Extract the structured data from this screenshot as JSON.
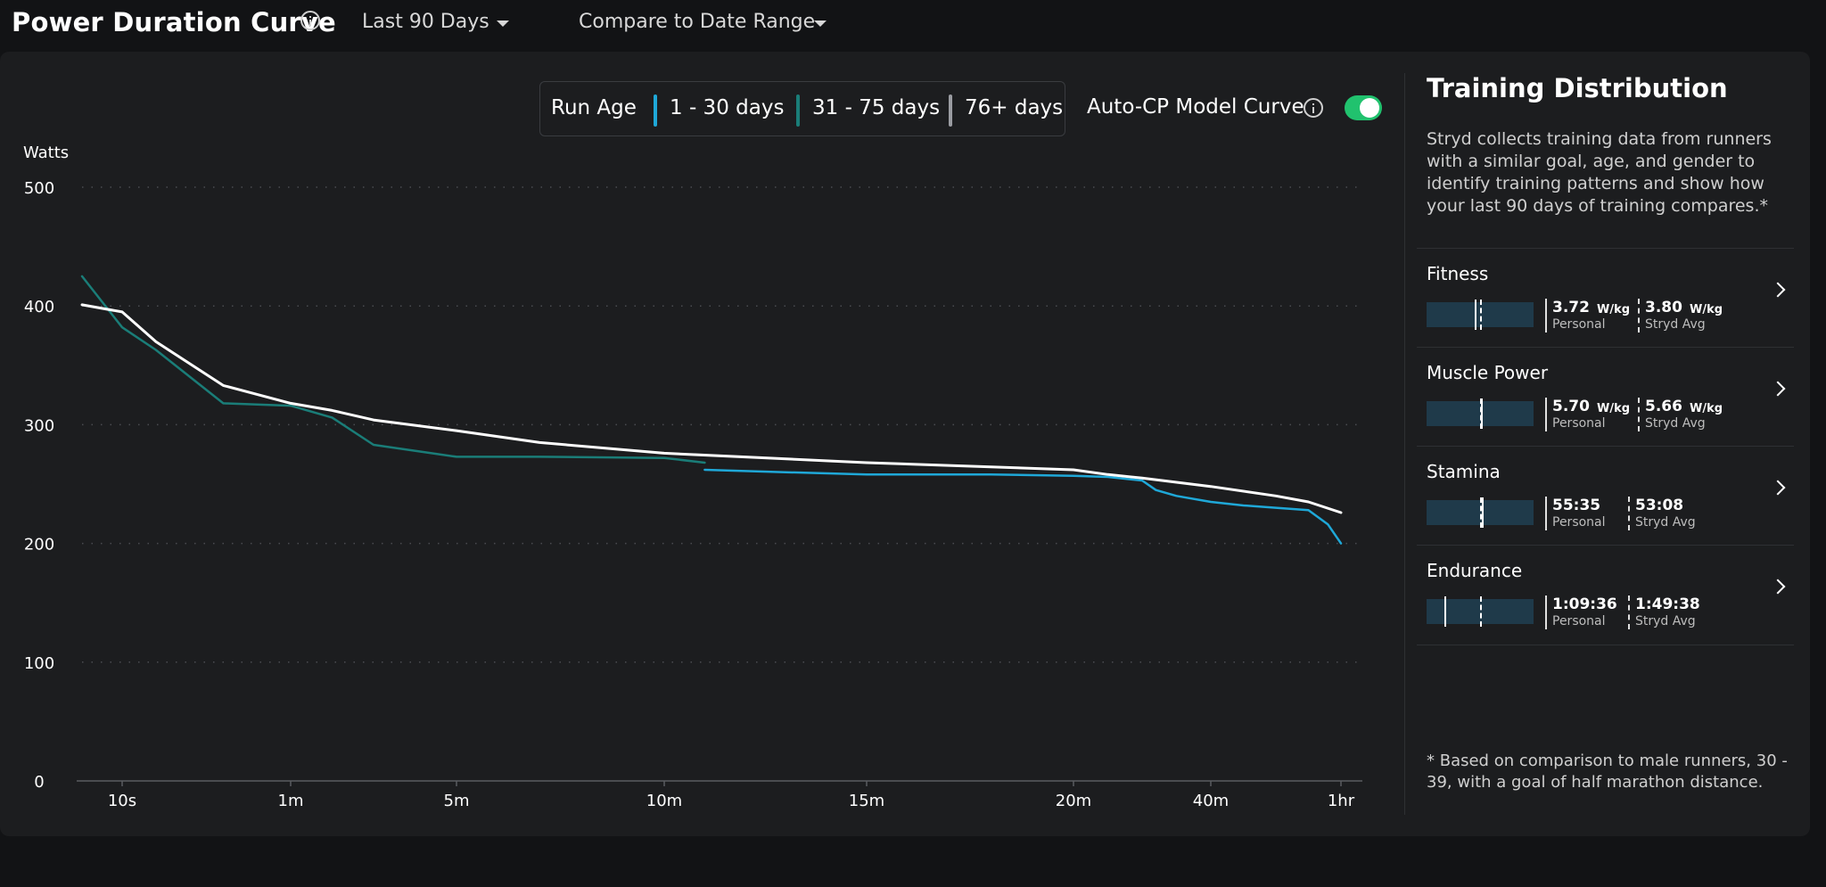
{
  "header": {
    "title": "Power Duration Curve",
    "range_label": "Last 90 Days",
    "compare_label": "Compare to Date Range"
  },
  "legend": {
    "title": "Run Age",
    "items": [
      {
        "label": "1 - 30 days",
        "color": "#1fa8d8"
      },
      {
        "label": "31 - 75 days",
        "color": "#1a7d78"
      },
      {
        "label": "76+ days",
        "color": "#9a9ca2"
      }
    ]
  },
  "model_toggle": {
    "label": "Auto-CP Model Curve",
    "on": true,
    "color": "#21c26e"
  },
  "chart_data": {
    "type": "line",
    "ylabel": "Watts",
    "ylim": [
      0,
      500
    ],
    "yticks": [
      "500",
      "400",
      "300",
      "200",
      "100",
      "0"
    ],
    "xticks": [
      "10s",
      "1m",
      "5m",
      "10m",
      "15m",
      "20m",
      "40m",
      "1hr"
    ],
    "grid": true,
    "series": [
      {
        "color": "#1a7d78",
        "points": [
          [
            "0s",
            425
          ],
          [
            "10s",
            382
          ],
          [
            "20s",
            363
          ],
          [
            "40s",
            318
          ],
          [
            "1m",
            316
          ],
          [
            "2m",
            306
          ],
          [
            "3m",
            283
          ],
          [
            "5m",
            273
          ],
          [
            "7m",
            273
          ],
          [
            "10m",
            272
          ],
          [
            "11m",
            268
          ]
        ]
      },
      {
        "color": "#1fa8d8",
        "points": [
          [
            "11m",
            262
          ],
          [
            "13m",
            260
          ],
          [
            "15m",
            258
          ],
          [
            "18m",
            258
          ],
          [
            "20m",
            257
          ],
          [
            "25m",
            256
          ],
          [
            "30m",
            253
          ],
          [
            "32m",
            245
          ],
          [
            "35m",
            240
          ],
          [
            "40m",
            235
          ],
          [
            "45m",
            232
          ],
          [
            "50m",
            230
          ],
          [
            "55m",
            228
          ],
          [
            "58m",
            216
          ],
          [
            "1hr",
            200
          ]
        ]
      },
      {
        "color": "#ffffff",
        "points": [
          [
            "0s",
            401
          ],
          [
            "10s",
            395
          ],
          [
            "20s",
            370
          ],
          [
            "40s",
            333
          ],
          [
            "1m",
            318
          ],
          [
            "2m",
            312
          ],
          [
            "3m",
            304
          ],
          [
            "5m",
            295
          ],
          [
            "7m",
            285
          ],
          [
            "10m",
            276
          ],
          [
            "15m",
            268
          ],
          [
            "20m",
            262
          ],
          [
            "25m",
            258
          ],
          [
            "30m",
            255
          ],
          [
            "40m",
            248
          ],
          [
            "50m",
            240
          ],
          [
            "55m",
            235
          ],
          [
            "1hr",
            226
          ]
        ]
      }
    ]
  },
  "training": {
    "title": "Training Distribution",
    "description": "Stryd collects training data from runners with a similar goal, age, and gender to identify training patterns and show how your last 90 days of training compares.*",
    "metrics": [
      {
        "name": "Fitness",
        "personal": "3.72",
        "personal_unit": "W/kg",
        "personal_label": "Personal",
        "avg": "3.80",
        "avg_unit": "W/kg",
        "avg_label": "Stryd Avg",
        "personal_frac": 0.45,
        "avg_frac": 0.5
      },
      {
        "name": "Muscle Power",
        "personal": "5.70",
        "personal_unit": "W/kg",
        "personal_label": "Personal",
        "avg": "5.66",
        "avg_unit": "W/kg",
        "avg_label": "Stryd Avg",
        "personal_frac": 0.51,
        "avg_frac": 0.5
      },
      {
        "name": "Stamina",
        "personal": "55:35",
        "personal_unit": "",
        "personal_label": "Personal",
        "avg": "53:08",
        "avg_unit": "",
        "avg_label": "Stryd Avg",
        "personal_frac": 0.52,
        "avg_frac": 0.5
      },
      {
        "name": "Endurance",
        "personal": "1:09:36",
        "personal_unit": "",
        "personal_label": "Personal",
        "avg": "1:49:38",
        "avg_unit": "",
        "avg_label": "Stryd Avg",
        "personal_frac": 0.17,
        "avg_frac": 0.5
      }
    ],
    "footnote": "* Based on comparison to male runners, 30 - 39, with a goal of half marathon distance."
  }
}
